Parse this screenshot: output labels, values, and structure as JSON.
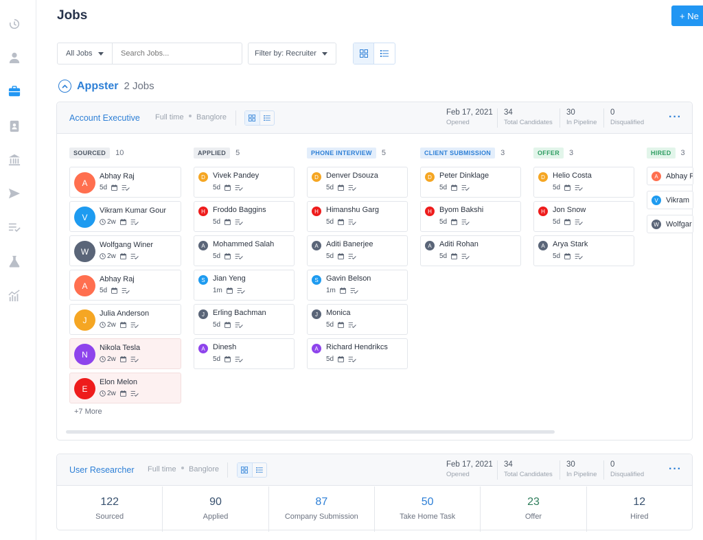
{
  "page": {
    "title": "Jobs",
    "new_button": "+ Ne"
  },
  "filters": {
    "all_jobs": "All Jobs",
    "search_placeholder": "Search Jobs...",
    "filter_by": "Filter by: Recruiter"
  },
  "company": {
    "name": "Appster",
    "count": "2 Jobs"
  },
  "job1": {
    "title": "Account Executive",
    "type": "Full time",
    "location": "Banglore",
    "opened_date": "Feb 17, 2021",
    "opened_label": "Opened",
    "total": "34",
    "total_label": "Total Candidates",
    "pipeline": "30",
    "pipeline_label": "In Pipeline",
    "disq": "0",
    "disq_label": "Disqualified",
    "more": "+7 More"
  },
  "stages": [
    {
      "label": "SOURCED",
      "count": "10",
      "bg": "#eceef1",
      "fg": "#4b5563"
    },
    {
      "label": "APPLIED",
      "count": "5",
      "bg": "#eceef1",
      "fg": "#4b5563"
    },
    {
      "label": "PHONE INTERVIEW",
      "count": "5",
      "bg": "#e3eefb",
      "fg": "#2d7fd6"
    },
    {
      "label": "CLIENT SUBMISSION",
      "count": "3",
      "bg": "#e3eefb",
      "fg": "#2d7fd6"
    },
    {
      "label": "OFFER",
      "count": "3",
      "bg": "#e2f5ea",
      "fg": "#2e9d62"
    },
    {
      "label": "HIRED",
      "count": "3",
      "bg": "#e2f5ea",
      "fg": "#2e9d62"
    }
  ],
  "sourced": [
    {
      "initial": "A",
      "name": "Abhay Raj",
      "time": "5d",
      "color": "#ff6f4f",
      "pink": false,
      "clock": false
    },
    {
      "initial": "V",
      "name": "Vikram Kumar Gour",
      "time": "2w",
      "color": "#1e9bf0",
      "pink": false,
      "clock": true
    },
    {
      "initial": "W",
      "name": "Wolfgang Winer",
      "time": "2w",
      "color": "#5a6578",
      "pink": false,
      "clock": true
    },
    {
      "initial": "A",
      "name": "Abhay Raj",
      "time": "5d",
      "color": "#ff6f4f",
      "pink": false,
      "clock": false
    },
    {
      "initial": "J",
      "name": "Julia Anderson",
      "time": "2w",
      "color": "#f5a623",
      "pink": false,
      "clock": true
    },
    {
      "initial": "N",
      "name": "Nikola Tesla",
      "time": "2w",
      "color": "#8e44ec",
      "pink": true,
      "clock": true
    },
    {
      "initial": "E",
      "name": "Elon Melon",
      "time": "2w",
      "color": "#ee1c1c",
      "pink": true,
      "clock": true
    }
  ],
  "applied": [
    {
      "initial": "D",
      "name": "Vivek Pandey",
      "time": "5d",
      "color": "#f5a623"
    },
    {
      "initial": "H",
      "name": "Froddo Baggins",
      "time": "5d",
      "color": "#ee1c1c"
    },
    {
      "initial": "A",
      "name": "Mohammed Salah",
      "time": "5d",
      "color": "#5a6578"
    },
    {
      "initial": "S",
      "name": "Jian Yeng",
      "time": "1m",
      "color": "#1e9bf0"
    },
    {
      "initial": "J",
      "name": "Erling Bachman",
      "time": "5d",
      "color": "#5a6578"
    },
    {
      "initial": "A",
      "name": "Dinesh",
      "time": "5d",
      "color": "#8e44ec"
    }
  ],
  "phone": [
    {
      "initial": "D",
      "name": "Denver Dsouza",
      "time": "5d",
      "color": "#f5a623"
    },
    {
      "initial": "H",
      "name": "Himanshu Garg",
      "time": "5d",
      "color": "#ee1c1c"
    },
    {
      "initial": "A",
      "name": "Aditi Banerjee",
      "time": "5d",
      "color": "#5a6578"
    },
    {
      "initial": "S",
      "name": "Gavin Belson",
      "time": "1m",
      "color": "#1e9bf0"
    },
    {
      "initial": "J",
      "name": "Monica",
      "time": "5d",
      "color": "#5a6578"
    },
    {
      "initial": "A",
      "name": "Richard Hendrikcs",
      "time": "5d",
      "color": "#8e44ec"
    }
  ],
  "client": [
    {
      "initial": "D",
      "name": "Peter Dinklage",
      "time": "5d",
      "color": "#f5a623"
    },
    {
      "initial": "H",
      "name": "Byom Bakshi",
      "time": "5d",
      "color": "#ee1c1c"
    },
    {
      "initial": "A",
      "name": "Aditi Rohan",
      "time": "5d",
      "color": "#5a6578"
    }
  ],
  "offer": [
    {
      "initial": "D",
      "name": "Helio Costa",
      "time": "5d",
      "color": "#f5a623"
    },
    {
      "initial": "H",
      "name": "Jon Snow",
      "time": "5d",
      "color": "#ee1c1c"
    },
    {
      "initial": "A",
      "name": "Arya Stark",
      "time": "5d",
      "color": "#5a6578"
    }
  ],
  "hired": [
    {
      "initial": "A",
      "name": "Abhay R",
      "color": "#ff6f4f"
    },
    {
      "initial": "V",
      "name": "Vikram",
      "color": "#1e9bf0"
    },
    {
      "initial": "W",
      "name": "Wolfgar",
      "color": "#5a6578"
    }
  ],
  "job2": {
    "title": "User Researcher",
    "type": "Full time",
    "location": "Banglore",
    "opened_date": "Feb 17, 2021",
    "opened_label": "Opened",
    "total": "34",
    "total_label": "Total Candidates",
    "pipeline": "30",
    "pipeline_label": "In Pipeline",
    "disq": "0",
    "disq_label": "Disqualified"
  },
  "summary": [
    {
      "value": "122",
      "label": "Sourced",
      "tone": "dark"
    },
    {
      "value": "90",
      "label": "Applied",
      "tone": "dark"
    },
    {
      "value": "87",
      "label": "Company Submission",
      "tone": "blue"
    },
    {
      "value": "50",
      "label": "Take Home Task",
      "tone": "blue"
    },
    {
      "value": "23",
      "label": "Offer",
      "tone": "green"
    },
    {
      "value": "12",
      "label": "Hired",
      "tone": "dark"
    }
  ]
}
